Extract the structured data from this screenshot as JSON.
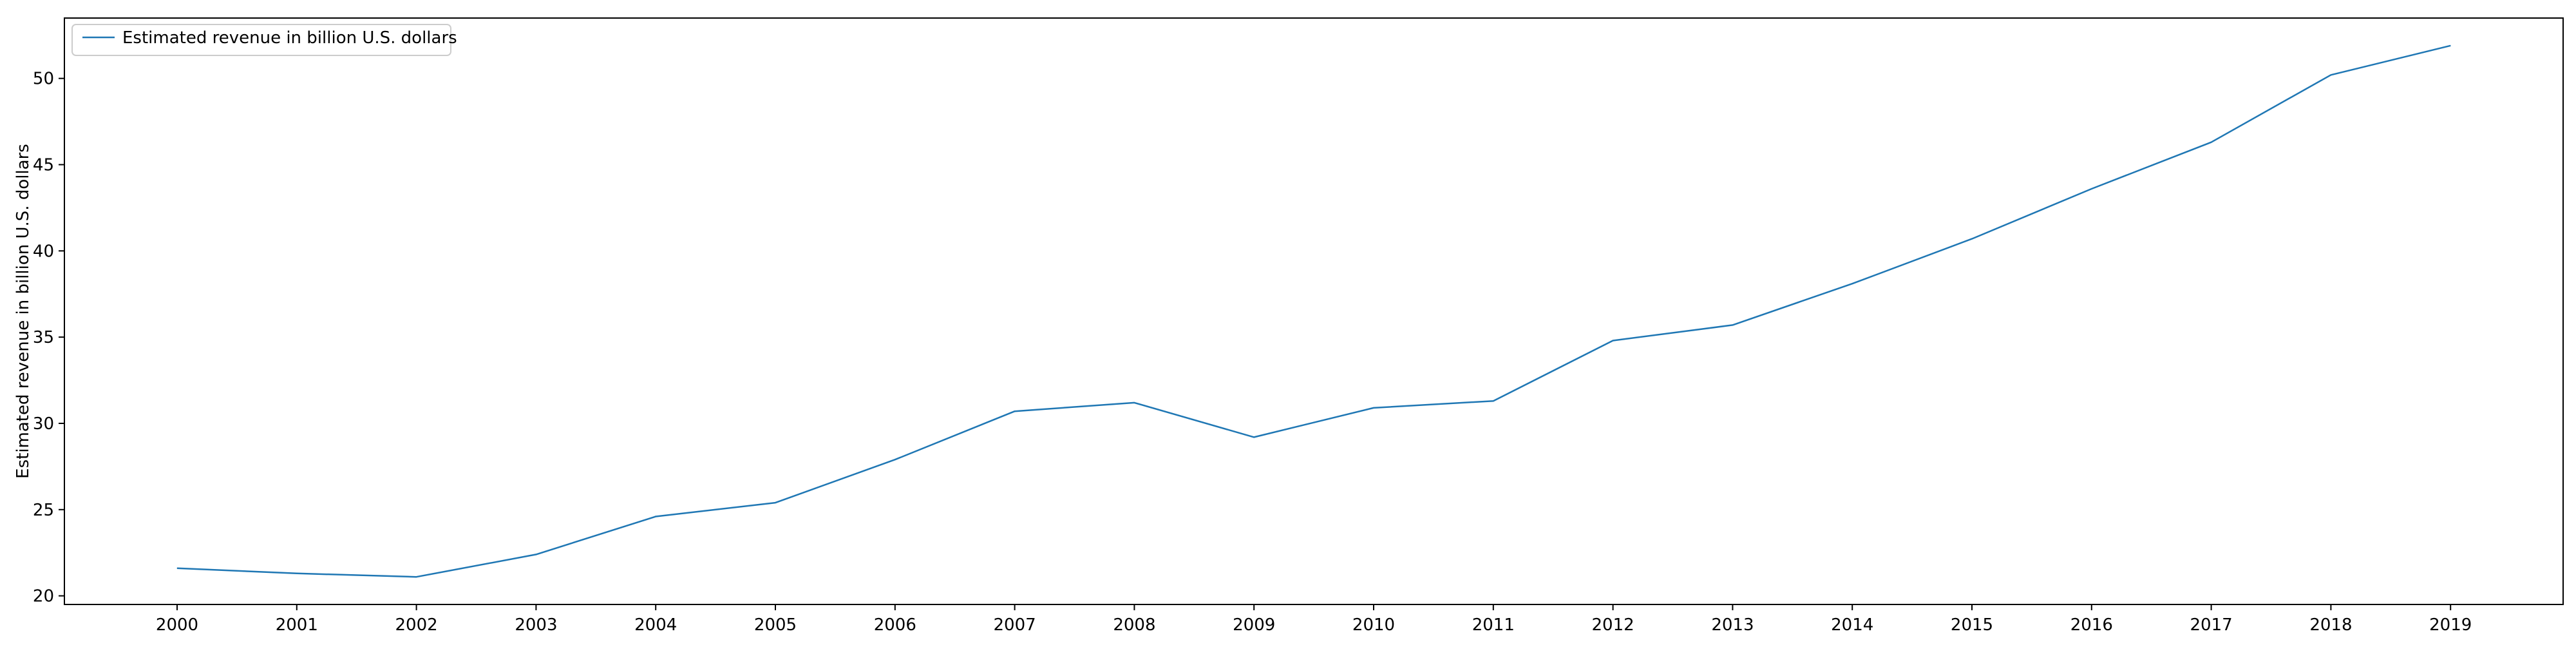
{
  "chart_data": {
    "type": "line",
    "title": "",
    "xlabel": "",
    "ylabel": "Estimated revenue in billion U.S. dollars",
    "categories": [
      "2000",
      "2001",
      "2002",
      "2003",
      "2004",
      "2005",
      "2006",
      "2007",
      "2008",
      "2009",
      "2010",
      "2011",
      "2012",
      "2013",
      "2014",
      "2015",
      "2016",
      "2017",
      "2018",
      "2019"
    ],
    "series": [
      {
        "name": "Estimated revenue in billion U.S. dollars",
        "color": "#1f77b4",
        "values": [
          21.6,
          21.3,
          21.1,
          22.4,
          24.6,
          25.4,
          27.9,
          30.7,
          31.2,
          29.2,
          30.9,
          31.3,
          34.8,
          35.7,
          38.1,
          40.7,
          43.6,
          46.3,
          50.2,
          51.9
        ]
      }
    ],
    "yticks": [
      20,
      25,
      30,
      35,
      40,
      45,
      50
    ],
    "ylim": [
      19.5,
      53.5
    ],
    "grid": false,
    "legend_position": "upper left"
  }
}
